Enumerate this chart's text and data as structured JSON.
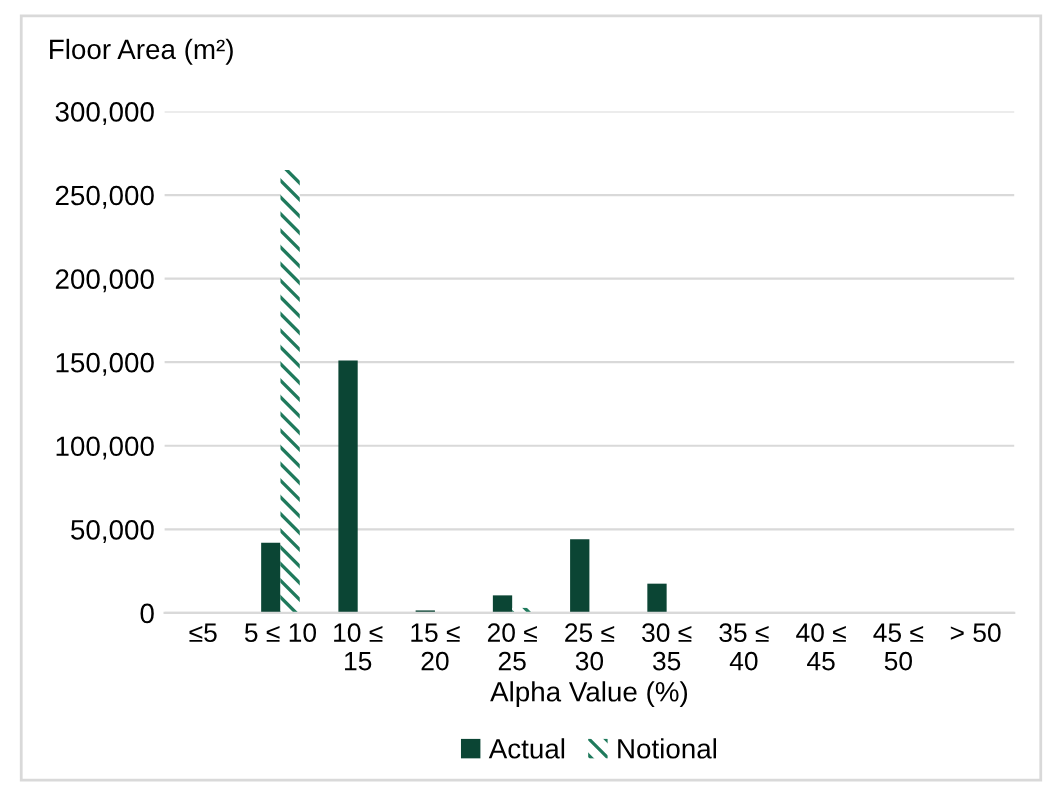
{
  "chart_data": {
    "type": "bar",
    "xlabel": "Alpha Value (%)",
    "ylabel": "Floor Area (m²)",
    "categories": [
      "≤5",
      "5 ≤ 10",
      "10 ≤\n15",
      "15 ≤\n20",
      "20 ≤\n25",
      "25 ≤\n30",
      "30 ≤\n35",
      "35 ≤\n40",
      "40 ≤\n45",
      "45 ≤\n50",
      "> 50"
    ],
    "series": [
      {
        "name": "Actual",
        "color": "#0b4534",
        "values": [
          0,
          42000,
          151000,
          1500,
          10500,
          44000,
          17500,
          0,
          0,
          0,
          0
        ]
      },
      {
        "name": "Notional",
        "color": "#1f7a5c",
        "values": [
          0,
          265000,
          0,
          0,
          3000,
          0,
          0,
          0,
          0,
          0,
          0
        ]
      }
    ],
    "ylim": [
      0,
      300000
    ],
    "yticks": [
      {
        "value": 0,
        "label": "0"
      },
      {
        "value": 50000,
        "label": "50,000"
      },
      {
        "value": 100000,
        "label": "100,000"
      },
      {
        "value": 150000,
        "label": "150,000"
      },
      {
        "value": 200000,
        "label": "200,000"
      },
      {
        "value": 250000,
        "label": "250,000"
      },
      {
        "value": 300000,
        "label": "300,000"
      }
    ],
    "grid": "y",
    "legend": "bottom"
  }
}
